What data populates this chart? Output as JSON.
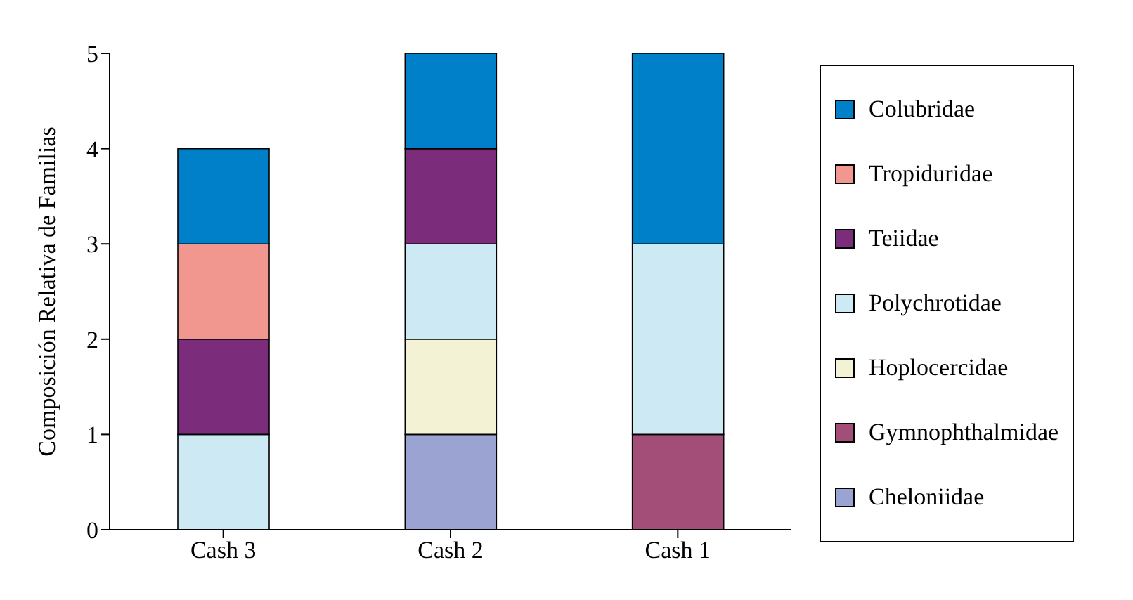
{
  "chart_data": {
    "type": "bar",
    "stacked": true,
    "ylabel": "Composición Relativa de Familias",
    "categories": [
      "Cash 3",
      "Cash 2",
      "Cash 1"
    ],
    "ylim": [
      0,
      5
    ],
    "yticks": [
      0,
      1,
      2,
      3,
      4,
      5
    ],
    "legend": "right",
    "series": [
      {
        "name": "Cheloniidae",
        "color": "#9aa3d2",
        "values": [
          null,
          1,
          null
        ]
      },
      {
        "name": "Gymnophthalmidae",
        "color": "#a24e78",
        "values": [
          null,
          null,
          1
        ]
      },
      {
        "name": "Hoplocercidae",
        "color": "#f4f2d4",
        "values": [
          null,
          1,
          null
        ]
      },
      {
        "name": "Polychrotidae",
        "color": "#cdeaf4",
        "values": [
          1,
          1,
          2
        ]
      },
      {
        "name": "Teiidae",
        "color": "#7b2d7b",
        "values": [
          1,
          1,
          null
        ]
      },
      {
        "name": "Tropiduridae",
        "color": "#f29690",
        "values": [
          1,
          null,
          null
        ]
      },
      {
        "name": "Colubridae",
        "color": "#0080c8",
        "values": [
          1,
          1,
          2
        ]
      }
    ]
  }
}
